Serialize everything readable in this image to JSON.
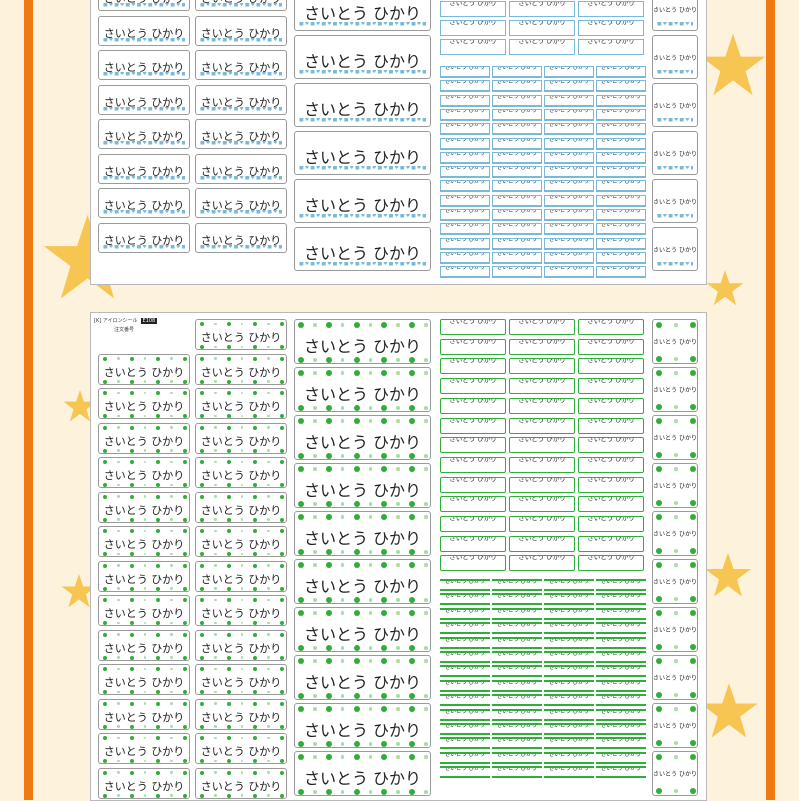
{
  "label_text": "さいとう ひかり",
  "sheet_header": {
    "product": "[K] アイロンシール",
    "code": "E108",
    "note": "注文番号"
  },
  "colors": {
    "frame": "#f07a12",
    "background": "#fdf3dc",
    "star": "#f7c552",
    "sheet1_accent": "#7ab9d8",
    "sheet2_accent": "#2fae3a",
    "sheet2_dot_light": "#a8dea9"
  },
  "icons": [
    "star-icon",
    "car-motif-icon",
    "heart-motif-icon",
    "dot-pattern-icon"
  ]
}
